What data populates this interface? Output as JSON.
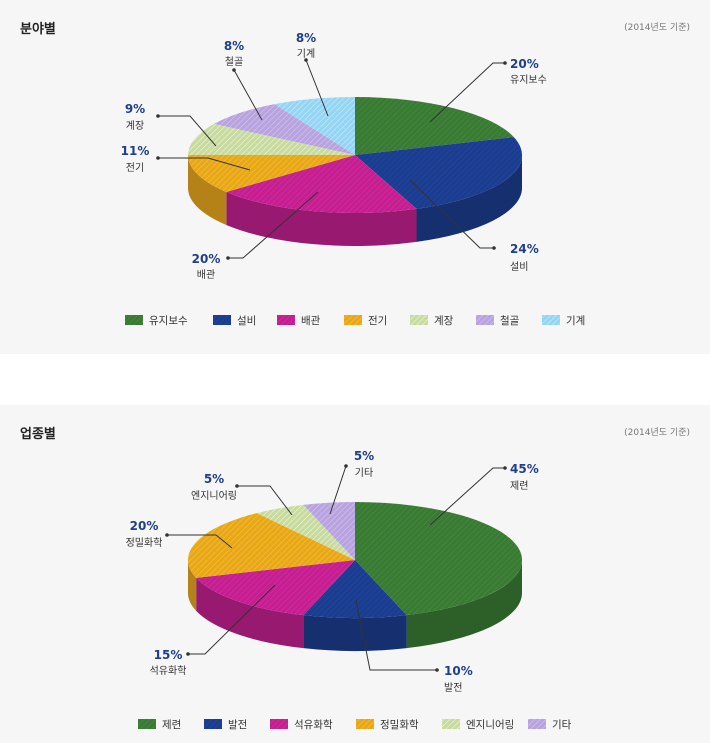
{
  "chart_data": [
    {
      "type": "pie",
      "title": "분야별",
      "note": "(2014년도 기준)",
      "categories": [
        "유지보수",
        "설비",
        "배관",
        "전기",
        "계장",
        "철골",
        "기계"
      ],
      "values": [
        20,
        24,
        20,
        11,
        9,
        8,
        8
      ],
      "labels": [
        "20%",
        "24%",
        "20%",
        "11%",
        "9%",
        "8%",
        "8%"
      ],
      "colors": [
        "#3a7a34",
        "#1c3d8e",
        "#c2208f",
        "#e7a71d",
        "#c8d9a4",
        "#b8a4dc",
        "#98d3f3"
      ],
      "legend_position": "bottom"
    },
    {
      "type": "pie",
      "title": "업종별",
      "note": "(2014년도 기준)",
      "categories": [
        "제련",
        "발전",
        "석유화학",
        "정밀화학",
        "엔지니어링",
        "기타"
      ],
      "values": [
        45,
        10,
        15,
        20,
        5,
        5
      ],
      "labels": [
        "45%",
        "10%",
        "15%",
        "20%",
        "5%",
        "5%"
      ],
      "colors": [
        "#3a7a34",
        "#1c3d8e",
        "#c2208f",
        "#e7a71d",
        "#c8d9a4",
        "#b8a4dc"
      ],
      "legend_position": "bottom"
    }
  ]
}
